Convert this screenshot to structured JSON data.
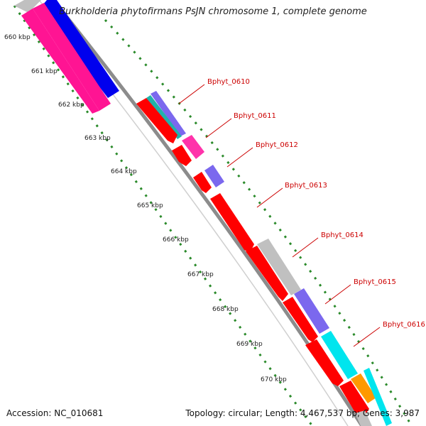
{
  "title": "Burkholderia phytofirmans PsJN chromosome 1, complete genome",
  "footer": {
    "accession": "Accession: NC_010681",
    "summary": "Topology: circular; Length: 4,467,537 bp; Genes: 3,987"
  },
  "kbp_labels": [
    "660 kbp",
    "661 kbp",
    "662 kbp",
    "663 kbp",
    "664 kbp",
    "665 kbp",
    "666 kbp",
    "667 kbp",
    "668 kbp",
    "669 kbp",
    "670 kbp"
  ],
  "gene_labels": [
    "Bphyt_0610",
    "Bphyt_0611",
    "Bphyt_0612",
    "Bphyt_0613",
    "Bphyt_0614",
    "Bphyt_0615",
    "Bphyt_0616"
  ],
  "colors": {
    "backbone": "#8c8c8c",
    "tick_dots": "#2a8a2a",
    "label": "#cc0000",
    "gene_red": "#ff0000",
    "gene_blue": "#0000ee",
    "gene_pink": "#ff1493",
    "gene_magenta": "#ff33aa",
    "gene_purple": "#7b68ee",
    "gene_gray": "#c0c0c0",
    "gene_cyan": "#00e5ee",
    "gene_orange": "#ff9900",
    "gene_teal": "#20b2aa"
  }
}
